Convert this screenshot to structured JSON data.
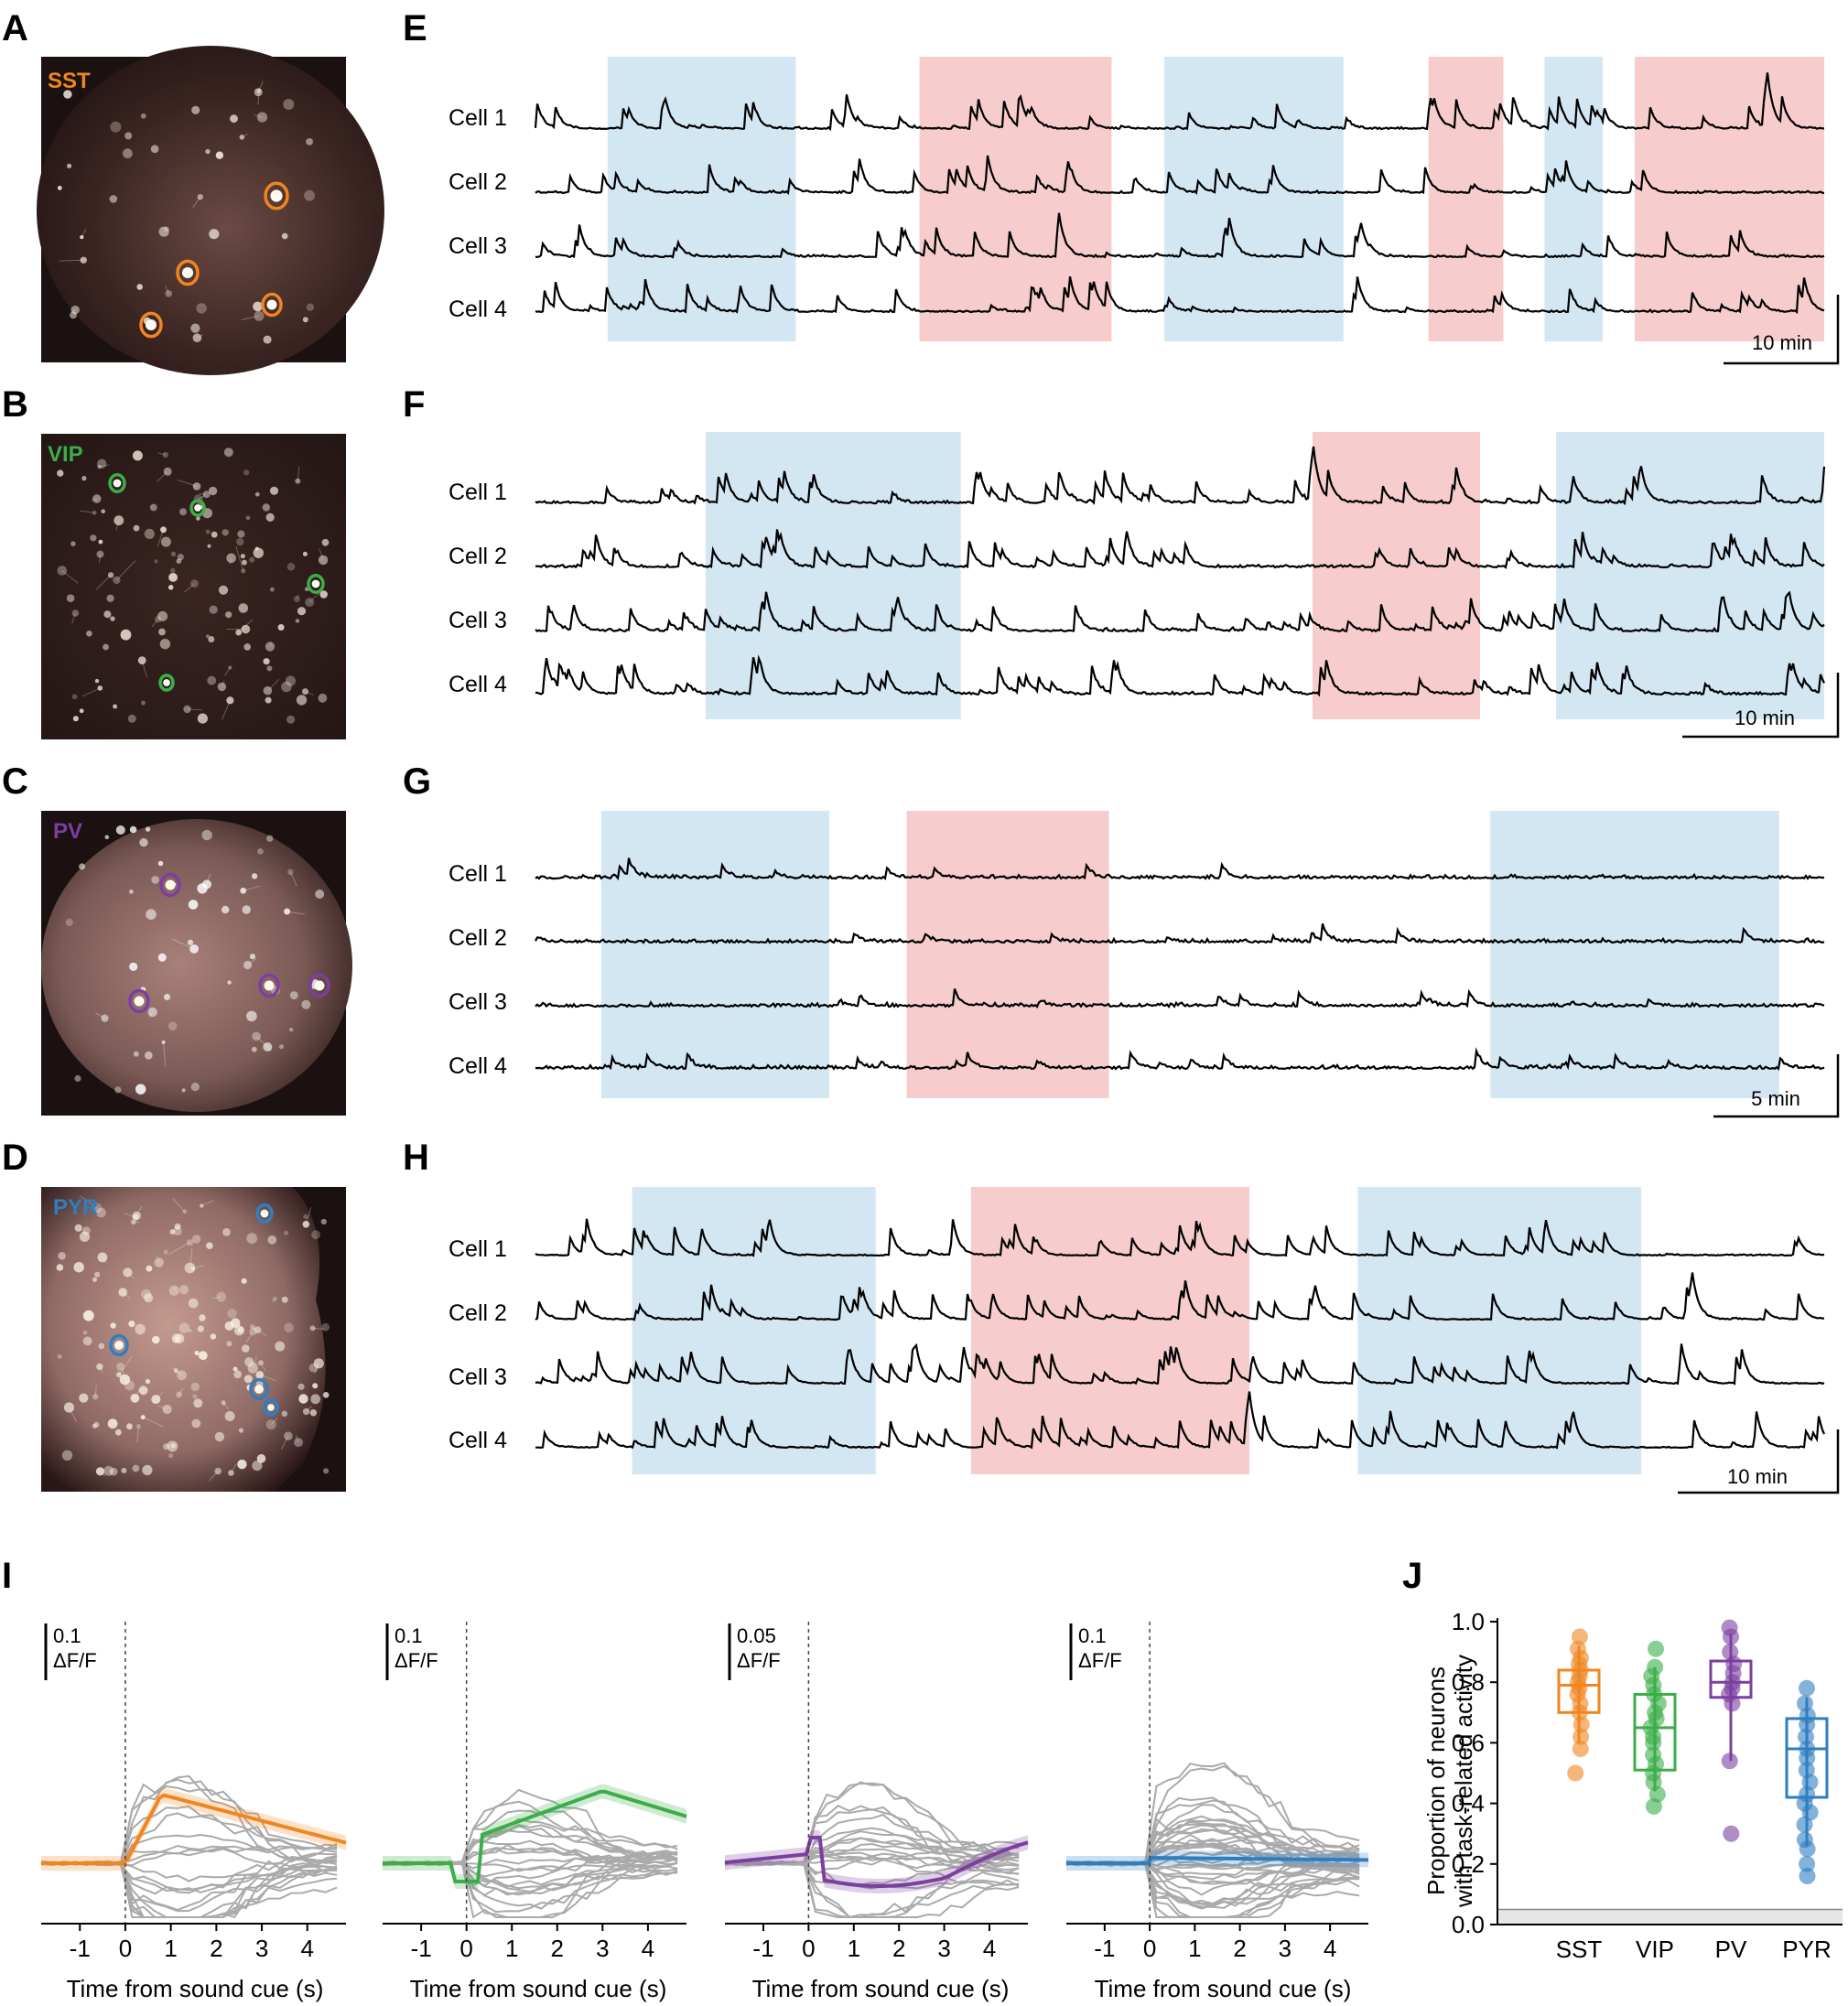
{
  "colors": {
    "sst": "#f0861f",
    "vip": "#3bae49",
    "pv": "#7b3fa0",
    "pyr": "#2e7ec2",
    "block_blue": "#d3e7f3",
    "block_red": "#f6cccc",
    "trace_grey": "#aaaaaa"
  },
  "image_panels": [
    {
      "letter": "A",
      "label": "SST",
      "color": "#f0861f"
    },
    {
      "letter": "B",
      "label": "VIP",
      "color": "#3bae49"
    },
    {
      "letter": "C",
      "label": "PV",
      "color": "#7b3fa0"
    },
    {
      "letter": "D",
      "label": "PYR",
      "color": "#2e7ec2"
    }
  ],
  "trace_panels": [
    {
      "letter": "E",
      "cells": [
        "Cell 1",
        "Cell 2",
        "Cell 3",
        "Cell 4"
      ],
      "scalebar": "10 min",
      "blocks": [
        {
          "type": "blue",
          "start": 0.056,
          "end": 0.202
        },
        {
          "type": "red",
          "start": 0.298,
          "end": 0.447
        },
        {
          "type": "blue",
          "start": 0.488,
          "end": 0.627
        },
        {
          "type": "red",
          "start": 0.693,
          "end": 0.751
        },
        {
          "type": "blue",
          "start": 0.783,
          "end": 0.828
        },
        {
          "type": "red",
          "start": 0.853,
          "end": 1.0
        }
      ]
    },
    {
      "letter": "F",
      "cells": [
        "Cell 1",
        "Cell 2",
        "Cell 3",
        "Cell 4"
      ],
      "scalebar": "10 min",
      "blocks": [
        {
          "type": "blue",
          "start": 0.132,
          "end": 0.33
        },
        {
          "type": "red",
          "start": 0.603,
          "end": 0.733
        },
        {
          "type": "blue",
          "start": 0.792,
          "end": 1.0
        }
      ]
    },
    {
      "letter": "G",
      "cells": [
        "Cell 1",
        "Cell 2",
        "Cell 3",
        "Cell 4"
      ],
      "scalebar": "5 min",
      "blocks": [
        {
          "type": "blue",
          "start": 0.051,
          "end": 0.228
        },
        {
          "type": "red",
          "start": 0.288,
          "end": 0.445
        },
        {
          "type": "blue",
          "start": 0.741,
          "end": 0.965
        }
      ]
    },
    {
      "letter": "H",
      "cells": [
        "Cell 1",
        "Cell 2",
        "Cell 3",
        "Cell 4"
      ],
      "scalebar": "10 min",
      "blocks": [
        {
          "type": "blue",
          "start": 0.075,
          "end": 0.264
        },
        {
          "type": "red",
          "start": 0.338,
          "end": 0.554
        },
        {
          "type": "blue",
          "start": 0.638,
          "end": 0.858
        }
      ]
    }
  ],
  "panel_I": {
    "letter": "I",
    "xlabel": "Time from sound cue (s)",
    "xticks": [
      "-1",
      "0",
      "1",
      "2",
      "3",
      "4"
    ],
    "subplots": [
      {
        "scale": "0.1",
        "unit": "ΔF/F",
        "color": "#f0861f"
      },
      {
        "scale": "0.1",
        "unit": "ΔF/F",
        "color": "#3bae49"
      },
      {
        "scale": "0.05",
        "unit": "ΔF/F",
        "color": "#7b3fa0"
      },
      {
        "scale": "0.1",
        "unit": "ΔF/F",
        "color": "#2e7ec2"
      }
    ]
  },
  "chart_data": {
    "type": "box",
    "letter": "J",
    "ylabel_line1": "Proportion of neurons",
    "ylabel_line2": "with task-related activity",
    "categories": [
      "SST",
      "VIP",
      "PV",
      "PYR"
    ],
    "yticks": [
      "0.0",
      "0.2",
      "0.4",
      "0.6",
      "0.8",
      "1.0"
    ],
    "ylim": [
      0,
      1.0
    ],
    "chance_level": 0.05,
    "boxes": [
      {
        "name": "SST",
        "color": "#f0861f",
        "q1": 0.7,
        "median": 0.79,
        "q3": 0.84,
        "whisker_low": 0.6,
        "whisker_high": 0.92,
        "points": [
          0.5,
          0.58,
          0.62,
          0.66,
          0.7,
          0.73,
          0.76,
          0.78,
          0.8,
          0.82,
          0.84,
          0.86,
          0.88,
          0.91,
          0.95
        ]
      },
      {
        "name": "VIP",
        "color": "#3bae49",
        "q1": 0.51,
        "median": 0.65,
        "q3": 0.76,
        "whisker_low": 0.44,
        "whisker_high": 0.85,
        "points": [
          0.39,
          0.43,
          0.47,
          0.5,
          0.53,
          0.56,
          0.6,
          0.62,
          0.65,
          0.68,
          0.7,
          0.73,
          0.76,
          0.79,
          0.82,
          0.85,
          0.91
        ]
      },
      {
        "name": "PV",
        "color": "#7b3fa0",
        "q1": 0.75,
        "median": 0.8,
        "q3": 0.87,
        "whisker_low": 0.54,
        "whisker_high": 0.96,
        "points": [
          0.3,
          0.54,
          0.73,
          0.76,
          0.78,
          0.8,
          0.83,
          0.86,
          0.9,
          0.95,
          0.98
        ]
      },
      {
        "name": "PYR",
        "color": "#2e7ec2",
        "q1": 0.42,
        "median": 0.58,
        "q3": 0.68,
        "whisker_low": 0.26,
        "whisker_high": 0.75,
        "points": [
          0.16,
          0.2,
          0.25,
          0.28,
          0.33,
          0.37,
          0.4,
          0.43,
          0.47,
          0.51,
          0.55,
          0.58,
          0.62,
          0.66,
          0.69,
          0.73,
          0.78
        ]
      }
    ]
  }
}
